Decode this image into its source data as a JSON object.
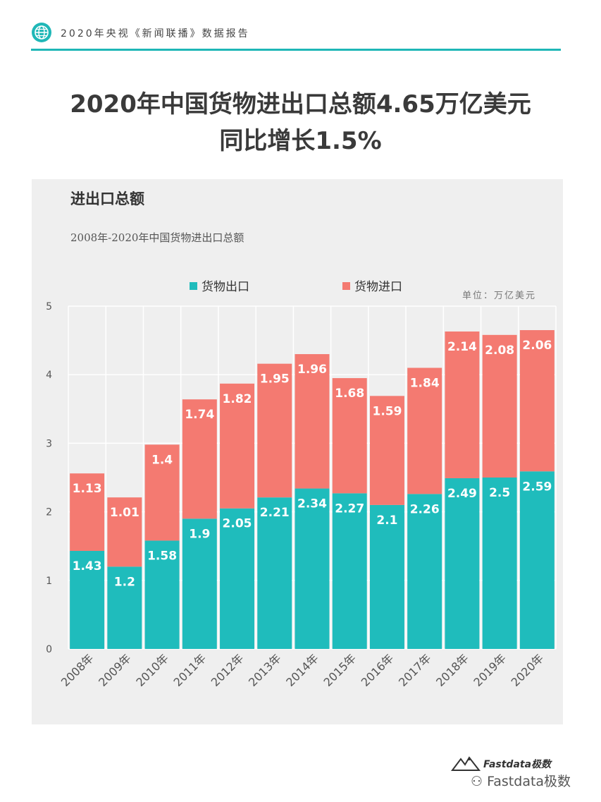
{
  "header": {
    "text": "2020年央视《新闻联播》数据报告"
  },
  "title": {
    "line1": "2020年中国货物进出口总额4.65万亿美元",
    "line2": "同比增长1.5%"
  },
  "colors": {
    "export": "#1fbcbc",
    "import": "#f47a71",
    "accent": "#1fb7b7",
    "panel": "#efefef",
    "grid": "#ffffff"
  },
  "watermark": {
    "brand": "Fastdata极数",
    "wechat": "Fastdata极数"
  },
  "chart_data": {
    "type": "bar",
    "stacked": true,
    "title": "进出口总额",
    "subtitle": "2008年-2020年中国货物进出口总额",
    "unit": "单位：万亿美元",
    "categories": [
      "2008年",
      "2009年",
      "2010年",
      "2011年",
      "2012年",
      "2013年",
      "2014年",
      "2015年",
      "2016年",
      "2017年",
      "2018年",
      "2019年",
      "2020年"
    ],
    "series": [
      {
        "name": "货物出口",
        "values": [
          1.43,
          1.2,
          1.58,
          1.9,
          2.05,
          2.21,
          2.34,
          2.27,
          2.1,
          2.26,
          2.49,
          2.5,
          2.59
        ]
      },
      {
        "name": "货物进口",
        "values": [
          1.13,
          1.01,
          1.4,
          1.74,
          1.82,
          1.95,
          1.96,
          1.68,
          1.59,
          1.84,
          2.14,
          2.08,
          2.06
        ]
      }
    ],
    "data_labels": {
      "export": [
        "1.43",
        "1.2",
        "1.58",
        "1.9",
        "2.05",
        "2.21",
        "2.34",
        "2.27",
        "2.1",
        "2.26",
        "2.49",
        "2.5",
        "2.59"
      ],
      "import": [
        "1.13",
        "1.01",
        "1.4",
        "1.74",
        "1.82",
        "1.95",
        "1.96",
        "1.68",
        "1.59",
        "1.84",
        "2.14",
        "2.08",
        "2.06"
      ]
    },
    "ylim": [
      0,
      5
    ],
    "yticks": [
      0,
      1,
      2,
      3,
      4,
      5
    ],
    "ytick_labels": [
      "0",
      "1",
      "2",
      "3",
      "4",
      "5"
    ],
    "legend_position": "top-center",
    "grid": true
  }
}
